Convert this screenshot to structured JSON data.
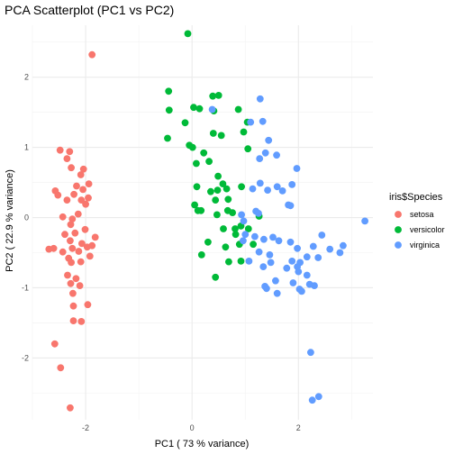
{
  "chart_data": {
    "type": "scatter",
    "title": "PCA Scatterplot (PC1 vs PC2)",
    "xlabel": "PC1 ( 73 % variance)",
    "ylabel": "PC2 ( 22.9 % variance)",
    "xlim": [
      -3.0,
      3.4
    ],
    "ylim": [
      -2.88,
      2.74
    ],
    "x_ticks": [
      -2,
      0,
      2
    ],
    "y_ticks": [
      -2,
      -1,
      0,
      1,
      2
    ],
    "x_tick_labels": [
      "-2",
      "0",
      "2"
    ],
    "y_tick_labels": [
      "-2",
      "-1",
      "0",
      "1",
      "2"
    ],
    "grid": true,
    "legend": {
      "title": "iris$Species",
      "position": "right",
      "entries": [
        "setosa",
        "versicolor",
        "virginica"
      ]
    },
    "series": [
      {
        "name": "setosa",
        "color": "#F8766D",
        "points": [
          [
            -1.88,
            2.32
          ],
          [
            -1.94,
            0.48
          ],
          [
            -2.05,
            0.4
          ],
          [
            -2.17,
            0.45
          ],
          [
            -2.3,
            0.94
          ],
          [
            -2.48,
            0.96
          ],
          [
            -2.35,
            0.84
          ],
          [
            -2.57,
            0.38
          ],
          [
            -2.27,
            0.71
          ],
          [
            -2.09,
            0.61
          ],
          [
            -2.04,
            0.69
          ],
          [
            -2.22,
            0.33
          ],
          [
            -1.95,
            0.28
          ],
          [
            -2.08,
            0.25
          ],
          [
            -2.35,
            0.25
          ],
          [
            -2.52,
            0.32
          ],
          [
            -2.0,
            0.19
          ],
          [
            -2.14,
            0.05
          ],
          [
            -2.25,
            -0.02
          ],
          [
            -2.28,
            -0.1
          ],
          [
            -2.43,
            0.01
          ],
          [
            -2.01,
            -0.17
          ],
          [
            -2.2,
            -0.22
          ],
          [
            -2.39,
            -0.24
          ],
          [
            -1.82,
            -0.28
          ],
          [
            -2.29,
            -0.33
          ],
          [
            -2.07,
            -0.37
          ],
          [
            -2.6,
            -0.44
          ],
          [
            -2.25,
            -0.44
          ],
          [
            -1.88,
            -0.4
          ],
          [
            -1.97,
            -0.42
          ],
          [
            -2.43,
            -0.49
          ],
          [
            -1.92,
            -0.55
          ],
          [
            -2.32,
            -0.58
          ],
          [
            -2.27,
            -0.64
          ],
          [
            -2.13,
            -0.48
          ],
          [
            -2.09,
            -0.63
          ],
          [
            -2.69,
            -0.45
          ],
          [
            -2.18,
            -0.87
          ],
          [
            -2.28,
            -0.94
          ],
          [
            -2.11,
            -0.97
          ],
          [
            -2.34,
            -0.82
          ],
          [
            -2.24,
            -1.08
          ],
          [
            -2.23,
            -1.26
          ],
          [
            -1.96,
            -1.24
          ],
          [
            -2.23,
            -1.47
          ],
          [
            -2.08,
            -1.48
          ],
          [
            -2.58,
            -1.8
          ],
          [
            -2.47,
            -2.14
          ],
          [
            -2.29,
            -2.71
          ]
        ]
      },
      {
        "name": "versicolor",
        "color": "#00BA38",
        "points": [
          [
            -0.08,
            2.62
          ],
          [
            -0.44,
            1.8
          ],
          [
            -0.43,
            1.53
          ],
          [
            -0.46,
            1.13
          ],
          [
            -0.13,
            1.35
          ],
          [
            0.14,
            1.55
          ],
          [
            0.03,
            1.57
          ],
          [
            0.41,
            1.52
          ],
          [
            0.5,
            1.74
          ],
          [
            0.39,
            1.73
          ],
          [
            0.4,
            1.2
          ],
          [
            0.55,
            1.17
          ],
          [
            0.87,
            1.54
          ],
          [
            1.04,
            1.36
          ],
          [
            0.97,
            1.22
          ],
          [
            1.05,
            0.98
          ],
          [
            -0.05,
            1.03
          ],
          [
            0.01,
            1.0
          ],
          [
            0.22,
            0.92
          ],
          [
            0.08,
            0.77
          ],
          [
            0.32,
            0.8
          ],
          [
            0.49,
            0.59
          ],
          [
            0.58,
            0.48
          ],
          [
            0.48,
            0.39
          ],
          [
            0.09,
            0.44
          ],
          [
            0.05,
            0.18
          ],
          [
            0.35,
            0.37
          ],
          [
            0.44,
            0.25
          ],
          [
            0.65,
            0.41
          ],
          [
            0.93,
            0.44
          ],
          [
            0.68,
            0.26
          ],
          [
            0.67,
            0.1
          ],
          [
            0.11,
            0.1
          ],
          [
            0.17,
            0.1
          ],
          [
            0.47,
            0.04
          ],
          [
            0.76,
            0.07
          ],
          [
            0.92,
            -0.12
          ],
          [
            1.26,
            0.02
          ],
          [
            0.82,
            -0.24
          ],
          [
            0.59,
            -0.16
          ],
          [
            0.3,
            -0.35
          ],
          [
            0.18,
            -0.53
          ],
          [
            0.63,
            -0.42
          ],
          [
            0.89,
            -0.38
          ],
          [
            1.06,
            -0.16
          ],
          [
            0.81,
            -0.16
          ],
          [
            0.92,
            -0.62
          ],
          [
            1.15,
            -0.38
          ],
          [
            0.69,
            -0.63
          ],
          [
            0.44,
            -0.85
          ]
        ]
      },
      {
        "name": "virginica",
        "color": "#619CFF",
        "points": [
          [
            0.38,
            1.54
          ],
          [
            1.28,
            1.69
          ],
          [
            1.33,
            1.37
          ],
          [
            1.1,
            1.36
          ],
          [
            1.44,
            1.1
          ],
          [
            1.38,
            0.92
          ],
          [
            1.59,
            0.89
          ],
          [
            1.27,
            0.84
          ],
          [
            1.6,
            0.44
          ],
          [
            1.42,
            0.39
          ],
          [
            1.28,
            0.49
          ],
          [
            1.14,
            0.41
          ],
          [
            1.88,
            0.47
          ],
          [
            1.97,
            0.7
          ],
          [
            1.81,
            0.18
          ],
          [
            1.85,
            0.17
          ],
          [
            1.7,
            0.38
          ],
          [
            1.2,
            0.09
          ],
          [
            1.25,
            0.06
          ],
          [
            0.93,
            0.04
          ],
          [
            0.97,
            -0.05
          ],
          [
            1.0,
            -0.24
          ],
          [
            0.96,
            -0.33
          ],
          [
            1.18,
            -0.27
          ],
          [
            1.35,
            -0.31
          ],
          [
            1.52,
            -0.28
          ],
          [
            1.48,
            -0.64
          ],
          [
            1.63,
            -0.33
          ],
          [
            1.26,
            -0.49
          ],
          [
            1.34,
            -0.7
          ],
          [
            1.07,
            -0.62
          ],
          [
            1.85,
            -0.35
          ],
          [
            1.98,
            -0.44
          ],
          [
            2.28,
            -0.41
          ],
          [
            2.44,
            -0.25
          ],
          [
            2.37,
            -0.57
          ],
          [
            2.16,
            -0.56
          ],
          [
            2.59,
            -0.45
          ],
          [
            2.78,
            -0.5
          ],
          [
            2.84,
            -0.4
          ],
          [
            3.25,
            -0.05
          ],
          [
            2.03,
            -0.64
          ],
          [
            1.98,
            -0.7
          ],
          [
            2.0,
            -0.77
          ],
          [
            1.9,
            -0.93
          ],
          [
            1.57,
            -0.9
          ],
          [
            1.6,
            -1.08
          ],
          [
            1.4,
            -1.01
          ],
          [
            2.21,
            -0.95
          ],
          [
            2.02,
            -1.02
          ],
          [
            1.78,
            -0.72
          ],
          [
            1.37,
            -0.98
          ],
          [
            1.46,
            -0.53
          ],
          [
            2.16,
            -0.82
          ],
          [
            2.3,
            -0.97
          ],
          [
            2.06,
            -1.05
          ],
          [
            1.88,
            -0.62
          ],
          [
            2.23,
            -1.92
          ],
          [
            2.26,
            -2.6
          ],
          [
            2.38,
            -2.55
          ]
        ]
      }
    ]
  }
}
